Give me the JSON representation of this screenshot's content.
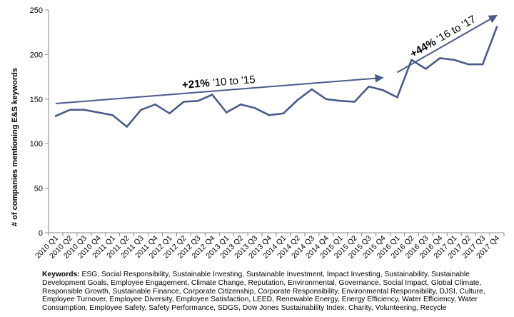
{
  "chart_data": {
    "type": "line",
    "title": "",
    "xlabel": "",
    "ylabel": "# of companies mentioning E&S keywords",
    "ylim": [
      0,
      250
    ],
    "yticks": [
      0,
      50,
      100,
      150,
      200,
      250
    ],
    "grid": false,
    "categories": [
      "2010 Q1",
      "2010 Q2",
      "2010 Q3",
      "2010 Q4",
      "2011 Q1",
      "2011 Q2",
      "2011 Q3",
      "2011 Q4",
      "2012 Q1",
      "2012 Q2",
      "2012 Q3",
      "2012 Q4",
      "2013 Q1",
      "2013 Q2",
      "2013 Q3",
      "2013 Q4",
      "2014 Q1",
      "2014 Q2",
      "2014 Q3",
      "2014 Q4",
      "2015 Q1",
      "2015 Q2",
      "2015 Q3",
      "2015 Q4",
      "2016 Q1",
      "2016 Q2",
      "2016 Q3",
      "2016 Q4",
      "2017 Q1",
      "2017 Q2",
      "2017 Q3",
      "2017 Q4"
    ],
    "series": [
      {
        "name": "# of companies mentioning E&S keywords",
        "color": "#4a5a8c",
        "values": [
          131,
          138,
          138,
          135,
          132,
          119,
          138,
          144,
          134,
          147,
          148,
          155,
          135,
          144,
          140,
          132,
          134,
          149,
          161,
          150,
          148,
          147,
          164,
          160,
          152,
          194,
          184,
          196,
          194,
          189,
          189,
          231
        ]
      }
    ],
    "annotations": [
      {
        "bold": "+21%",
        "text": " '10 to '15",
        "arrow_from": {
          "x": "2010 Q1",
          "y": 145
        },
        "arrow_to": {
          "x": "2015 Q4",
          "y": 174
        }
      },
      {
        "bold": "+44%",
        "text": " '16 to '17",
        "arrow_from": {
          "x": "2016 Q1",
          "y": 180
        },
        "arrow_to": {
          "x": "2017 Q4",
          "y": 244
        }
      }
    ]
  },
  "keywords": {
    "label": "Keywords:",
    "text": " ESG, Social Responsibility, Sustainable Investing, Sustainable Investment, Impact Investing, Sustainability, Sustainable Development Goals, Employee Engagement, Climate Change, Reputation, Environmental, Governance, Social Impact, Global Climate, Responsible Growth, Sustainable Finance, Corporate Citizenship, Corporate Responsibility, Environmental Responsibility, DJSI, Culture, Employee Turnover, Employee Diversity, Employee Satisfaction, LEED, Renewable Energy, Energy Efficiency, Water Efficiency, Water Consumption, Employee Safety, Safety Performance, SDGS, Dow Jones Sustainability Index, Charity, Volunteering, Recycle"
  }
}
